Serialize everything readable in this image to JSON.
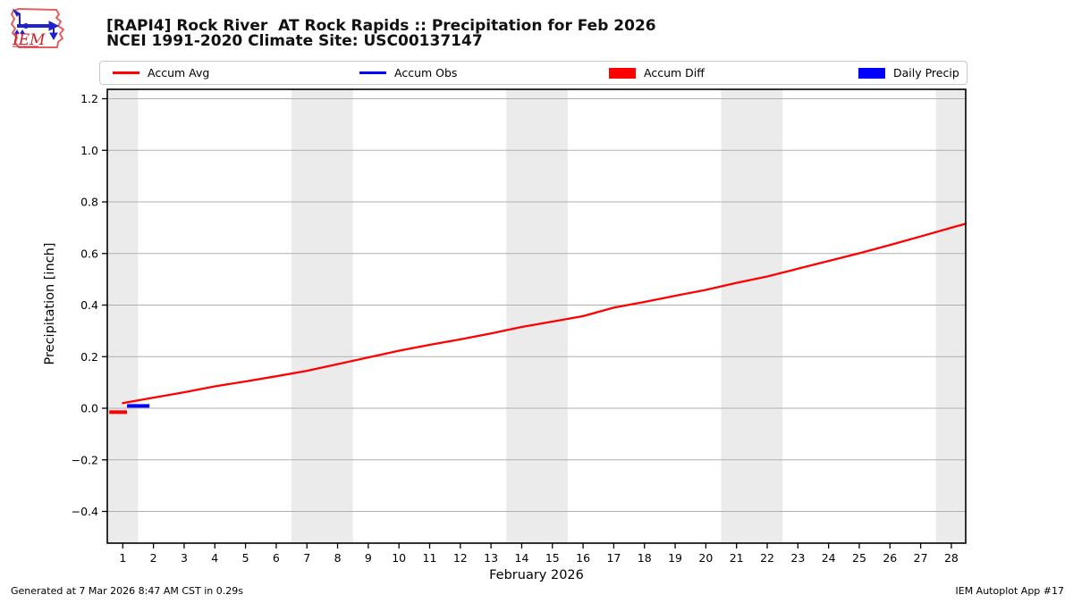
{
  "header": {
    "logo_text": "IEM"
  },
  "legend": {
    "items": [
      {
        "label": "Accum Avg",
        "swatch": "line",
        "color": "#ff0000"
      },
      {
        "label": "Accum Obs",
        "swatch": "line",
        "color": "#0000ff"
      },
      {
        "label": "Accum Diff",
        "swatch": "patch",
        "color": "#ff0000"
      },
      {
        "label": "Daily Precip",
        "swatch": "patch",
        "color": "#0000ff"
      }
    ]
  },
  "chart_data": {
    "type": "line",
    "title": "[RAPI4] Rock River  AT Rock Rapids :: Precipitation for Feb 2026",
    "subtitle": "NCEI 1991-2020 Climate Site: USC00137147",
    "xlabel": "February 2026",
    "ylabel": "Precipitation [inch]",
    "grid": "horizontal",
    "background_color": "#ffffff",
    "band_color": "#ebebeb",
    "gridline_color": "#b0b0b0",
    "ylim": [
      -0.53,
      1.24
    ],
    "yticks": [
      {
        "value": 1.2,
        "label": "1.2"
      },
      {
        "value": 1.0,
        "label": "1.0"
      },
      {
        "value": 0.8,
        "label": "0.8"
      },
      {
        "value": 0.6,
        "label": "0.6"
      },
      {
        "value": 0.4,
        "label": "0.4"
      },
      {
        "value": 0.2,
        "label": "0.2"
      },
      {
        "value": 0.0,
        "label": "0.0"
      },
      {
        "value": -0.2,
        "label": "−0.2"
      },
      {
        "value": -0.4,
        "label": "−0.4"
      }
    ],
    "xticks": [
      1,
      2,
      3,
      4,
      5,
      6,
      7,
      8,
      9,
      10,
      11,
      12,
      13,
      14,
      15,
      16,
      17,
      18,
      19,
      20,
      21,
      22,
      23,
      24,
      25,
      26,
      27,
      28
    ],
    "weekend_bands_days": [
      [
        0.5,
        1.5
      ],
      [
        6.5,
        8.5
      ],
      [
        13.5,
        15.5
      ],
      [
        20.5,
        22.5
      ],
      [
        27.5,
        28.5
      ]
    ],
    "series": [
      {
        "name": "Accum Avg",
        "type": "line",
        "color": "#ff0000",
        "x": [
          1,
          2,
          3,
          4,
          5,
          6,
          7,
          8,
          9,
          10,
          11,
          12,
          13,
          14,
          15,
          16,
          17,
          18,
          19,
          20,
          21,
          22,
          23,
          24,
          25,
          26,
          27,
          28
        ],
        "values": [
          0.02,
          0.041,
          0.062,
          0.085,
          0.104,
          0.124,
          0.145,
          0.171,
          0.197,
          0.223,
          0.246,
          0.267,
          0.29,
          0.315,
          0.336,
          0.357,
          0.39,
          0.412,
          0.436,
          0.459,
          0.486,
          0.511,
          0.541,
          0.571,
          0.601,
          0.633,
          0.666,
          0.7
        ],
        "edge_extension": {
          "day": 28.47,
          "value": 0.715
        }
      }
    ],
    "day1_markers": [
      {
        "name": "Accum Diff",
        "color": "#ff0000",
        "from_day": 0.56,
        "to_day": 1.14,
        "value": -0.015
      },
      {
        "name": "Daily Precip",
        "color": "#0000ff",
        "from_day": 1.14,
        "to_day": 1.87,
        "value": 0.009
      }
    ]
  },
  "footer": {
    "left": "Generated at 7 Mar 2026 8:47 AM CST in 0.29s",
    "right": "IEM Autoplot App #17"
  }
}
